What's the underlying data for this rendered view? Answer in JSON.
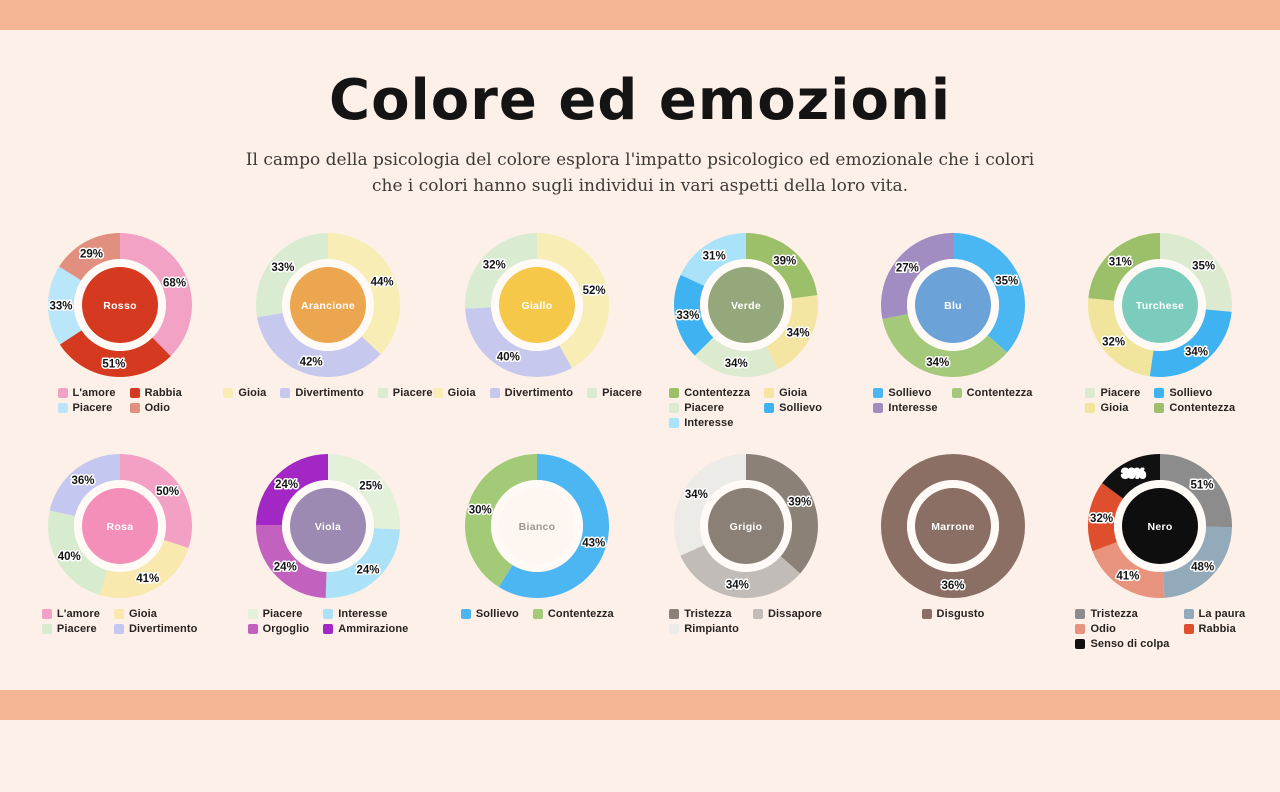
{
  "page": {
    "title": "Colore ed emozioni",
    "subtitle_line1": "Il campo della psicologia del colore esplora l'impatto psicologico ed emozionale che i colori",
    "subtitle_line2": "che i colori hanno sugli individui in vari aspetti della loro vita.",
    "colors": {
      "background": "#fdf0e8",
      "accent_bar": "#f6b694",
      "title_text": "#141414",
      "subtitle_text": "#3d3a38",
      "legend_text": "#262321",
      "donut_gap_ring": "#fffaf6",
      "label_halo": "#ffffff"
    }
  },
  "chart_data": [
    {
      "type": "pie",
      "name": "Rosso",
      "center_color": "#d5391f",
      "center_text_color": "#ffffff",
      "legend_columns": 2,
      "segments": [
        {
          "label": "L'amore",
          "value": 68,
          "color": "#f2a3c5"
        },
        {
          "label": "Rabbia",
          "value": 51,
          "color": "#d5391f"
        },
        {
          "label": "Piacere",
          "value": 33,
          "color": "#b9e6f9"
        },
        {
          "label": "Odio",
          "value": 29,
          "color": "#e18f7e"
        }
      ]
    },
    {
      "type": "pie",
      "name": "Arancione",
      "center_color": "#eca64f",
      "center_text_color": "#ffffff",
      "legend_columns": 3,
      "segments": [
        {
          "label": "Gioia",
          "value": 44,
          "color": "#f8edb4"
        },
        {
          "label": "Divertimento",
          "value": 42,
          "color": "#c6c8ee"
        },
        {
          "label": "Piacere",
          "value": 33,
          "color": "#d9ecd2"
        }
      ]
    },
    {
      "type": "pie",
      "name": "Giallo",
      "center_color": "#f6c84a",
      "center_text_color": "#ffffff",
      "legend_columns": 3,
      "segments": [
        {
          "label": "Gioia",
          "value": 52,
          "color": "#f8edb4"
        },
        {
          "label": "Divertimento",
          "value": 40,
          "color": "#c6c8ee"
        },
        {
          "label": "Piacere",
          "value": 32,
          "color": "#d9ecd2"
        }
      ]
    },
    {
      "type": "pie",
      "name": "Verde",
      "center_color": "#95a87b",
      "center_text_color": "#ffffff",
      "legend_columns": 2,
      "segments": [
        {
          "label": "Contentezza",
          "value": 39,
          "color": "#9cc069"
        },
        {
          "label": "Gioia",
          "value": 34,
          "color": "#f4e5a2"
        },
        {
          "label": "Piacere",
          "value": 34,
          "color": "#dcead0"
        },
        {
          "label": "Sollievo",
          "value": 33,
          "color": "#3fb3f2"
        },
        {
          "label": "Interesse",
          "value": 31,
          "color": "#aae2fa"
        }
      ]
    },
    {
      "type": "pie",
      "name": "Blu",
      "center_color": "#6ba3d8",
      "center_text_color": "#ffffff",
      "legend_columns": 2,
      "segments": [
        {
          "label": "Sollievo",
          "value": 35,
          "color": "#4bb7f2"
        },
        {
          "label": "Contentezza",
          "value": 34,
          "color": "#a5c97b"
        },
        {
          "label": "Interesse",
          "value": 27,
          "color": "#a18dc2"
        }
      ]
    },
    {
      "type": "pie",
      "name": "Turchese",
      "center_color": "#7cccbe",
      "center_text_color": "#ffffff",
      "legend_columns": 2,
      "segments": [
        {
          "label": "Piacere",
          "value": 35,
          "color": "#dcead0"
        },
        {
          "label": "Sollievo",
          "value": 34,
          "color": "#3fb3f2"
        },
        {
          "label": "Gioia",
          "value": 32,
          "color": "#f1e49c"
        },
        {
          "label": "Contentezza",
          "value": 31,
          "color": "#9cc069"
        }
      ]
    },
    {
      "type": "pie",
      "name": "Rosa",
      "center_color": "#f48fba",
      "center_text_color": "#ffffff",
      "legend_columns": 2,
      "segments": [
        {
          "label": "L'amore",
          "value": 50,
          "color": "#f2a0c4"
        },
        {
          "label": "Gioia",
          "value": 41,
          "color": "#f9e9ae"
        },
        {
          "label": "Piacere",
          "value": 40,
          "color": "#d7eccf"
        },
        {
          "label": "Divertimento",
          "value": 36,
          "color": "#c4c8f0"
        }
      ]
    },
    {
      "type": "pie",
      "name": "Viola",
      "center_color": "#9d8ab3",
      "center_text_color": "#ffffff",
      "legend_columns": 2,
      "segments": [
        {
          "label": "Piacere",
          "value": 25,
          "color": "#e3f1da"
        },
        {
          "label": "Interesse",
          "value": 24,
          "color": "#abe2f8"
        },
        {
          "label": "Orgoglio",
          "value": 24,
          "color": "#c261be"
        },
        {
          "label": "Ammirazione",
          "value": 24,
          "color": "#a227c4"
        }
      ]
    },
    {
      "type": "pie",
      "name": "Bianco",
      "center_color": "#fdf6f1",
      "center_text_color": "#9e9792",
      "legend_columns": 2,
      "segments": [
        {
          "label": "Sollievo",
          "value": 43,
          "color": "#4cb6f3"
        },
        {
          "label": "Contentezza",
          "value": 30,
          "color": "#a2ca77"
        }
      ]
    },
    {
      "type": "pie",
      "name": "Grigio",
      "center_color": "#8a8076",
      "center_text_color": "#ffffff",
      "legend_columns": 2,
      "segments": [
        {
          "label": "Tristezza",
          "value": 39,
          "color": "#8b8177"
        },
        {
          "label": "Dissapore",
          "value": 34,
          "color": "#c1bcb7"
        },
        {
          "label": "Rimpianto",
          "value": 34,
          "color": "#edebe7"
        }
      ]
    },
    {
      "type": "pie",
      "name": "Marrone",
      "center_color": "#8c6f64",
      "center_text_color": "#ffffff",
      "legend_columns": 1,
      "segments": [
        {
          "label": "Disgusto",
          "value": 36,
          "color": "#8c6f64"
        }
      ]
    },
    {
      "type": "pie",
      "name": "Nero",
      "center_color": "#0e0e0e",
      "center_text_color": "#ffffff",
      "legend_columns": 2,
      "segments": [
        {
          "label": "Tristezza",
          "value": 51,
          "color": "#8c8c8c"
        },
        {
          "label": "La paura",
          "value": 48,
          "color": "#92aaba"
        },
        {
          "label": "Odio",
          "value": 41,
          "color": "#e7937e"
        },
        {
          "label": "Rabbia",
          "value": 32,
          "color": "#df4f2e"
        },
        {
          "label": "Senso di colpa",
          "value": 30,
          "color": "#111111",
          "label_color": "#ffffff"
        }
      ]
    }
  ]
}
